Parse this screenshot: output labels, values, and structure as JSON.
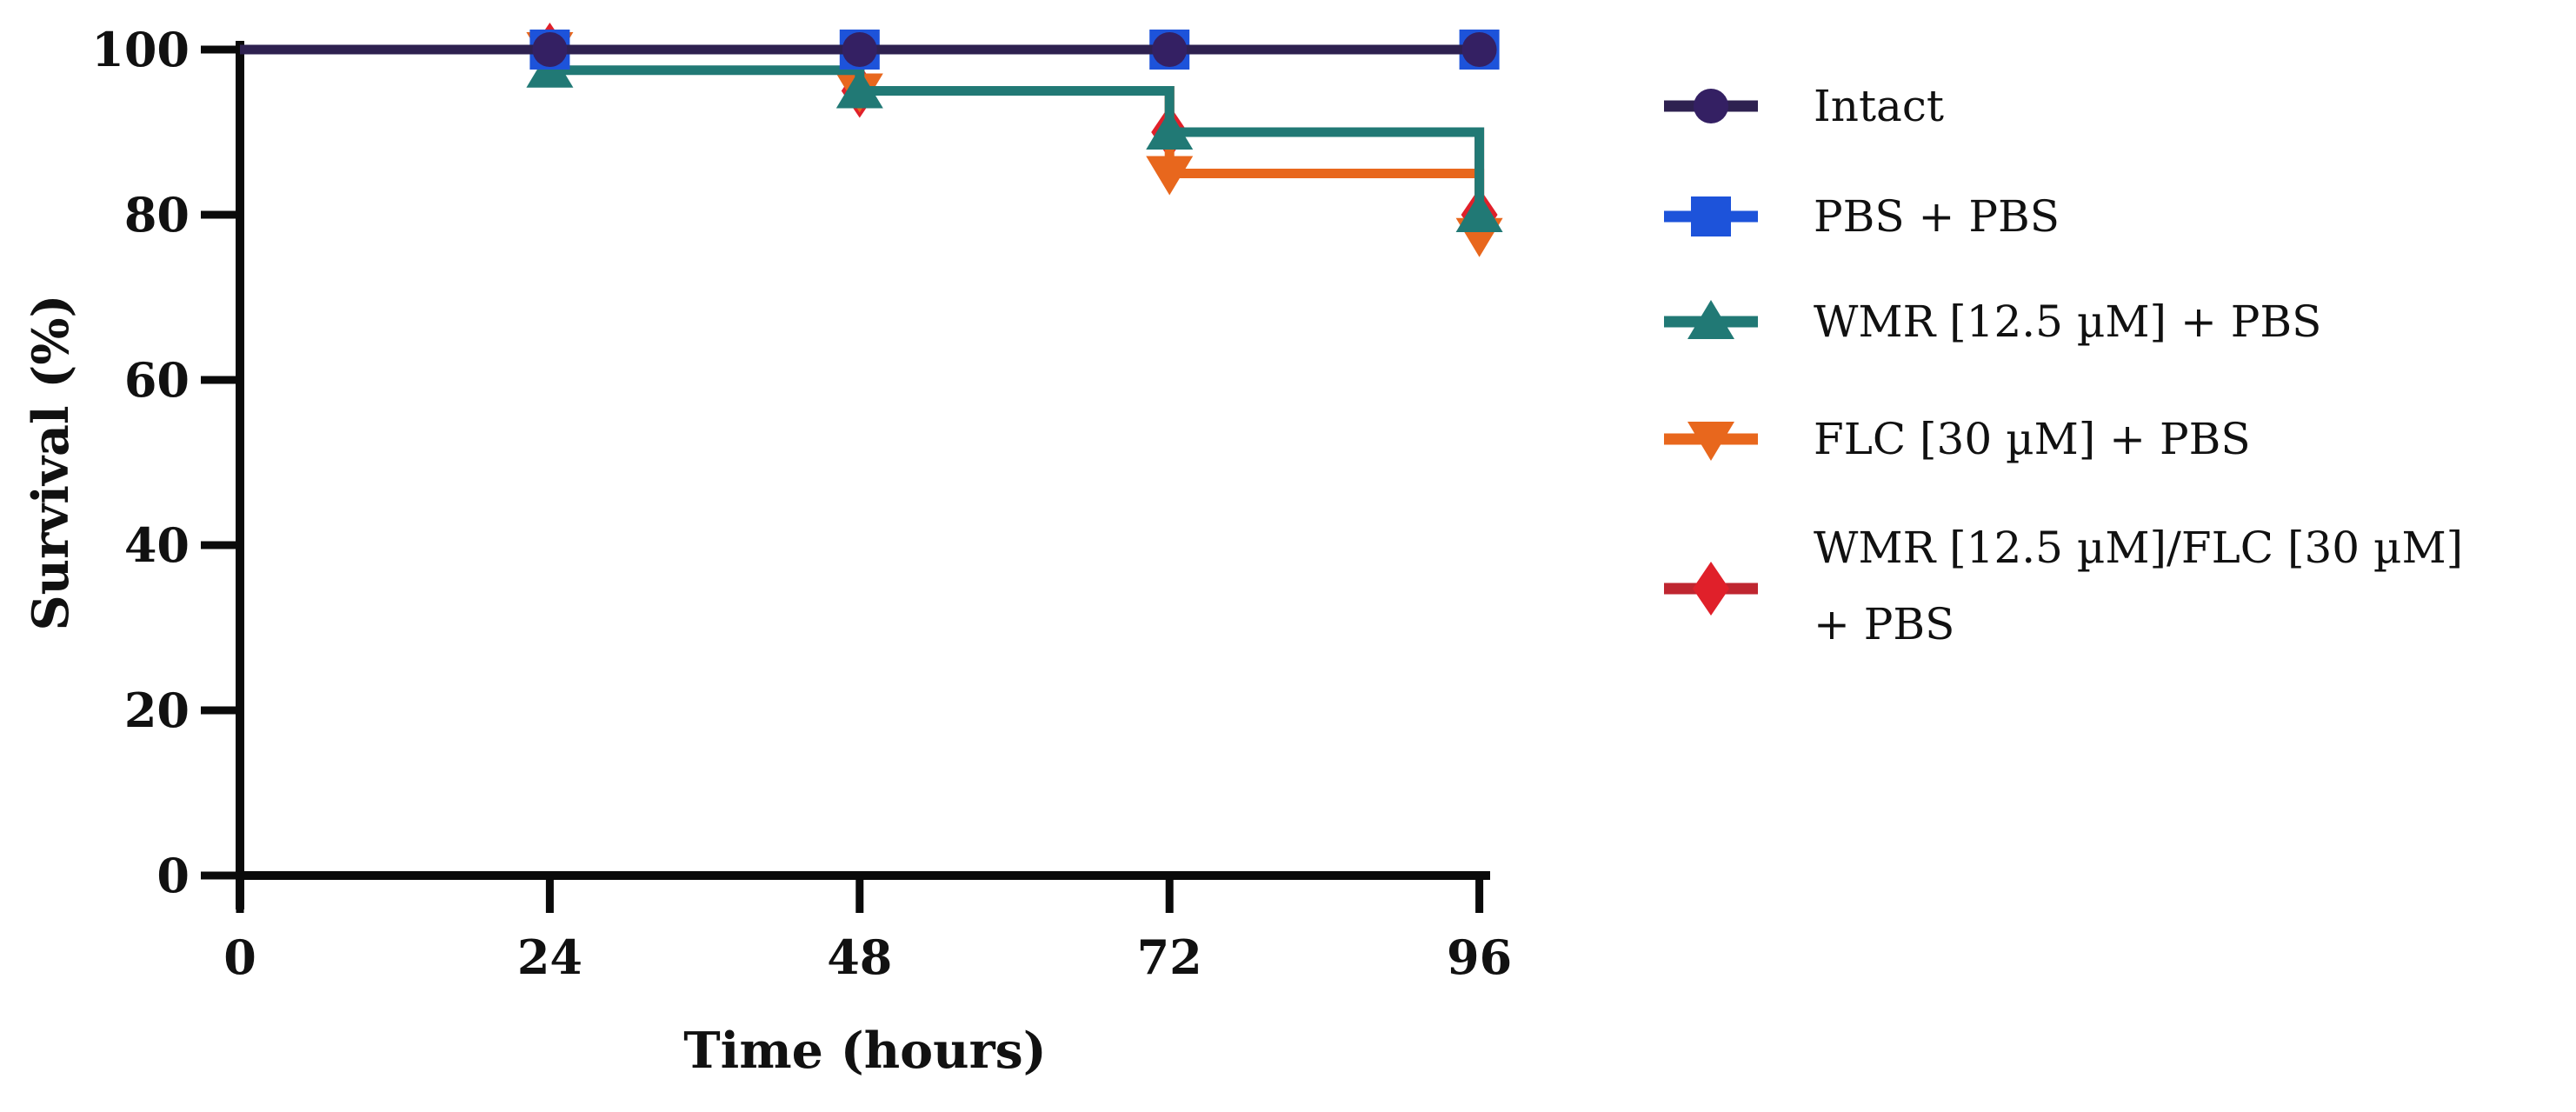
{
  "figure": {
    "background": "#ffffff",
    "axis_color": "#0a0a0a",
    "text_color": "#111111"
  },
  "chart_data": {
    "type": "line",
    "subtype": "survival-step",
    "title": "",
    "xlabel": "Time (hours)",
    "ylabel": "Survival (%)",
    "x": [
      0,
      24,
      48,
      72,
      96
    ],
    "xticks": [
      "0",
      "24",
      "48",
      "72",
      "96"
    ],
    "yticks": [
      "0",
      "20",
      "40",
      "60",
      "80",
      "100"
    ],
    "ytick_values": [
      0,
      20,
      40,
      60,
      80,
      100
    ],
    "xlim": [
      0,
      96
    ],
    "ylim": [
      0,
      100
    ],
    "grid": false,
    "legend_position": "right",
    "step": "post",
    "series": [
      {
        "name": "Intact",
        "label_lines": [
          "Intact"
        ],
        "marker": "circle",
        "marker_icon": "circle-icon",
        "color": "#342063",
        "line_color": "#2e2150",
        "values": [
          100,
          100,
          100,
          100,
          100
        ]
      },
      {
        "name": "PBS + PBS",
        "label_lines": [
          "PBS + PBS"
        ],
        "marker": "square",
        "marker_icon": "square-icon",
        "color": "#1d53da",
        "line_color": "#1d53da",
        "values": [
          100,
          100,
          100,
          100,
          100
        ]
      },
      {
        "name": "WMR [12.5 µM] + PBS",
        "label_lines": [
          "WMR [12.5 µM] + PBS"
        ],
        "marker": "triangle-up",
        "marker_icon": "triangle-up-icon",
        "color": "#217975",
        "line_color": "#217975",
        "values": [
          100,
          97.5,
          95,
          90,
          80
        ]
      },
      {
        "name": "FLC [30 µM] + PBS",
        "label_lines": [
          "FLC [30 µM] + PBS"
        ],
        "marker": "triangle-down",
        "marker_icon": "triangle-down-icon",
        "color": "#e8671d",
        "line_color": "#e8671d",
        "values": [
          100,
          100,
          95,
          85,
          77.5
        ]
      },
      {
        "name": "WMR [12.5 µM]/FLC [30 µM] + PBS",
        "label_lines": [
          "WMR [12.5 µM]/FLC [30 µM]",
          "+ PBS"
        ],
        "marker": "diamond",
        "marker_icon": "diamond-icon",
        "color": "#e0202a",
        "line_color": "#bf2630",
        "values": [
          100,
          100,
          95,
          90,
          80
        ]
      }
    ]
  }
}
